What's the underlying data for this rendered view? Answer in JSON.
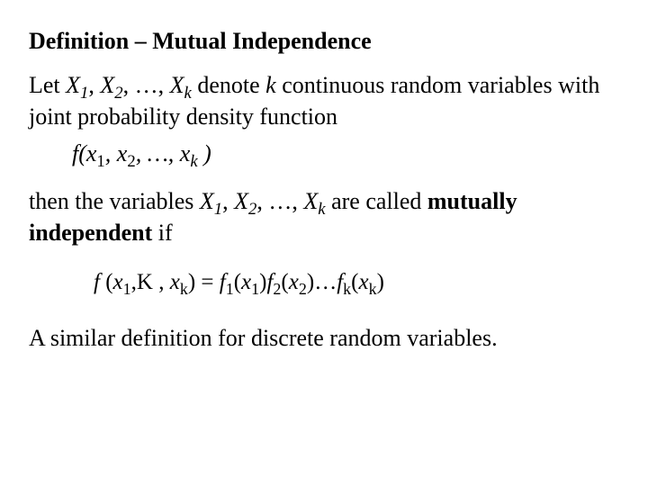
{
  "title": "Definition – Mutual Independence",
  "p1_a": "Let ",
  "p1_vars": "X",
  "p1_sub1": "1",
  "p1_c1": ", ",
  "p1_sub2": "2",
  "p1_c2": ", …, ",
  "p1_subk": "k",
  "p1_b": " denote ",
  "p1_k": "k",
  "p1_c": " continuous  random variables with joint probability density function",
  "p1_fn": "f(x",
  "p1_fnsub1": "1",
  "p1_fnc1": ", x",
  "p1_fnsub2": "2",
  "p1_fnc2": ", …, x",
  "p1_fnsubk": "k",
  "p1_fnend": " )",
  "p2_a": "then the variables ",
  "p2_sub1": "1",
  "p2_sub2": "2",
  "p2_subk": "k",
  "p2_b": " are called ",
  "p2_bold": "mutually independent",
  "p2_c": " if",
  "formula_f": "f ",
  "formula_lp": "(",
  "formula_x": "x",
  "formula_s1": "1",
  "formula_dots": ",K , ",
  "formula_sk": "k",
  "formula_rp": ")",
  "formula_eq": " = ",
  "formula_f1": "f",
  "formula_f1s": "1",
  "formula_lp1": "(",
  "formula_x1s": "1",
  "formula_rp1": ")",
  "formula_f2s": "2",
  "formula_x2s": "2",
  "formula_dots2": "…",
  "formula_fks": "k",
  "formula_xks": "k",
  "p3": "A similar definition for discrete  random variables."
}
